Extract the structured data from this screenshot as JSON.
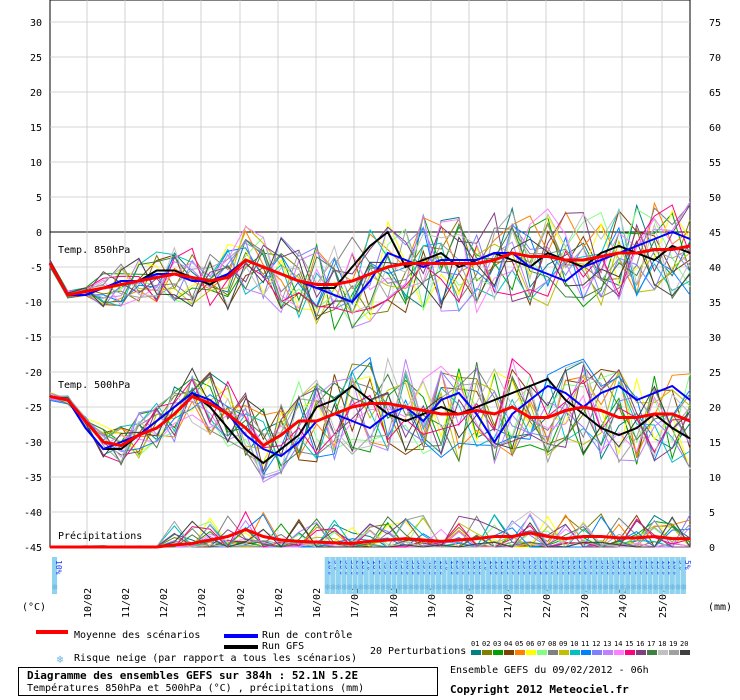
{
  "chart_data": {
    "type": "line",
    "title": "Diagramme des ensembles GEFS sur 384h : 52.1N 5.2E",
    "subtitle": "Températures 850hPa et 500hPa (°C) , précipitations (mm)",
    "left_axis": {
      "label": "(°C)",
      "ticks": [
        30,
        25,
        20,
        15,
        10,
        5,
        0,
        -5,
        -10,
        -15,
        -20,
        -25,
        -30,
        -35,
        -40,
        -45
      ]
    },
    "right_axis": {
      "label": "(mm)",
      "ticks": [
        75,
        70,
        65,
        60,
        55,
        50,
        45,
        40,
        35,
        30,
        25,
        20,
        15,
        10,
        5,
        0
      ]
    },
    "x_ticks": [
      "10/02",
      "11/02",
      "12/02",
      "13/02",
      "14/02",
      "15/02",
      "16/02",
      "17/02",
      "18/02",
      "19/02",
      "20/02",
      "21/02",
      "22/02",
      "23/02",
      "24/02",
      "25/02"
    ],
    "grid": true,
    "panel_labels": {
      "t850": "Temp. 850hPa",
      "t500": "Temp. 500hPa",
      "precip": "Précipitations"
    },
    "series": [
      {
        "name": "Moyenne des scénarios",
        "panel": "t850",
        "values": [
          -4.5,
          -9,
          -8.5,
          -8,
          -7.5,
          -7,
          -6.5,
          -6,
          -6.5,
          -7,
          -6.5,
          -4,
          -5,
          -6,
          -7,
          -7.5,
          -7.5,
          -7,
          -6,
          -5,
          -4.5,
          -4.5,
          -4.5,
          -4.5,
          -4.5,
          -4,
          -3,
          -3.5,
          -3.5,
          -4,
          -4,
          -3.5,
          -3,
          -3,
          -2.5,
          -2.5,
          -2
        ]
      },
      {
        "name": "Run de contrôle",
        "panel": "t850",
        "values": [
          -4.5,
          -9,
          -9,
          -8,
          -7,
          -7,
          -6,
          -6,
          -7,
          -7,
          -6,
          -4,
          -5,
          -6,
          -7,
          -8,
          -9,
          -10,
          -7,
          -3,
          -4,
          -5,
          -4,
          -4,
          -4,
          -3,
          -3,
          -5,
          -6,
          -7,
          -5,
          -4,
          -3,
          -2,
          -1,
          0,
          -1
        ]
      },
      {
        "name": "Run GFS",
        "panel": "t850",
        "values": [
          -4.5,
          -9,
          -9,
          -8,
          -7,
          -7,
          -5.5,
          -5.5,
          -6.5,
          -7.5,
          -6,
          -4,
          -5,
          -6,
          -7,
          -8,
          -8,
          -5,
          -2,
          0,
          -5,
          -4,
          -3,
          -5,
          -4,
          -3,
          -4,
          -5,
          -3,
          -4,
          -5,
          -3,
          -2,
          -3,
          -4,
          -2,
          -3
        ]
      },
      {
        "name": "Moyenne des scénarios",
        "panel": "t500",
        "values": [
          -23.5,
          -24,
          -27,
          -30,
          -30.5,
          -29,
          -28,
          -26,
          -23.5,
          -24.5,
          -26,
          -28,
          -30.5,
          -29,
          -27,
          -27,
          -26,
          -25,
          -24.5,
          -24.5,
          -25,
          -25.5,
          -26,
          -26,
          -25.5,
          -26,
          -25,
          -26.5,
          -26.5,
          -25.5,
          -25,
          -25.5,
          -26.5,
          -26.5,
          -26,
          -26,
          -27
        ]
      },
      {
        "name": "Run de contrôle",
        "panel": "t500",
        "values": [
          -23.5,
          -24,
          -28,
          -31,
          -30,
          -29,
          -27,
          -25,
          -23,
          -24,
          -26,
          -29,
          -31,
          -32,
          -30,
          -27,
          -26,
          -27,
          -28,
          -26,
          -25,
          -27,
          -24,
          -23,
          -26,
          -30,
          -26,
          -24,
          -22,
          -23,
          -25,
          -23,
          -22,
          -24,
          -23,
          -22,
          -24
        ]
      },
      {
        "name": "Run GFS",
        "panel": "t500",
        "values": [
          -23.5,
          -24,
          -28,
          -31,
          -31,
          -29,
          -27,
          -25,
          -23,
          -25,
          -28,
          -31,
          -33,
          -31,
          -29,
          -25,
          -24,
          -22,
          -24,
          -26,
          -27,
          -26,
          -25,
          -26,
          -25,
          -24,
          -23,
          -22,
          -21,
          -24,
          -26,
          -28,
          -29,
          -28,
          -26,
          -28,
          -29.5
        ]
      },
      {
        "name": "Moyenne des scénarios",
        "panel": "precip",
        "values": [
          0,
          0,
          0,
          0,
          0,
          0,
          0,
          0.3,
          0.5,
          1,
          1.5,
          2.5,
          1.5,
          1,
          0.8,
          0.7,
          0.6,
          0.5,
          0.8,
          1,
          1.2,
          1,
          0.8,
          1,
          1.2,
          1.5,
          1.5,
          2,
          1.5,
          1.2,
          1.5,
          1.5,
          1.3,
          1.3,
          1.5,
          1.2,
          1.2
        ]
      }
    ],
    "snow_risk": [
      "10%",
      "",
      "",
      "",
      "",
      "",
      "",
      "",
      "",
      "",
      "",
      "",
      "",
      "",
      "",
      "",
      "",
      "",
      "",
      "",
      "",
      "",
      "",
      "",
      "",
      "",
      "",
      "",
      "",
      "",
      "",
      "",
      "",
      "",
      "",
      "",
      "",
      "",
      "",
      "",
      "",
      "",
      "",
      "",
      "",
      "",
      "",
      "",
      "",
      "10%",
      "5%",
      "20%",
      "35%",
      "35%",
      "25%",
      "10%",
      "5%",
      "10%",
      "25%",
      "45%",
      "65%",
      "80%",
      "75%",
      "60%",
      "55%",
      "50%",
      "55%",
      "40%",
      "20%",
      "10%",
      "5%",
      "15%",
      "25%",
      "10%",
      "15%",
      "10%",
      "10%",
      "5%",
      "10%",
      "15%",
      "10%",
      "15%",
      "20%",
      "20%",
      "15%",
      "20%",
      "20%",
      "25%",
      "25%",
      "20%",
      "15%",
      "20%",
      "20%",
      "20%",
      "25%",
      "25%",
      "20%",
      "20%",
      "30%",
      "30%",
      "30%",
      "25%",
      "15%",
      "15%",
      "20%",
      "25%",
      "15%",
      "15%",
      "15%",
      "15%",
      "10%",
      "10%",
      "5%",
      "5%"
    ]
  },
  "legend": {
    "mean_label": "Moyenne des scénarios",
    "control_label": "Run de contrôle",
    "gfs_label": "Run GFS",
    "snow_label": "Risque neige (par rapport a tous les scénarios)",
    "perturbations_label": "20 Perturbations",
    "perturbation_numbers": [
      "01",
      "02",
      "03",
      "04",
      "05",
      "06",
      "07",
      "08",
      "09",
      "10",
      "11",
      "12",
      "13",
      "14",
      "15",
      "16",
      "17",
      "18",
      "19",
      "20"
    ]
  },
  "footer": {
    "title": "Diagramme des ensembles GEFS sur 384h : 52.1N 5.2E",
    "subtitle": "Températures 850hPa et 500hPa (°C) , précipitations (mm)",
    "ensemble": "Ensemble GEFS du 09/02/2012 - 06h",
    "copyright": "Copyright 2012 Meteociel.fr"
  },
  "colors": {
    "mean": "#ff0000",
    "control": "#0000ff",
    "gfs": "#000000",
    "snow_bar": "#8fd3f0",
    "snow_text": "#1a3cff",
    "perturbations": [
      "#008080",
      "#808000",
      "#00a000",
      "#804000",
      "#ff8000",
      "#ffff00",
      "#80ff80",
      "#808080",
      "#c0c000",
      "#00c0c0",
      "#0080ff",
      "#8080ff",
      "#c080ff",
      "#ff80ff",
      "#ff0080",
      "#804080",
      "#408040",
      "#c0c0c0",
      "#a0a0a0",
      "#404040"
    ]
  }
}
